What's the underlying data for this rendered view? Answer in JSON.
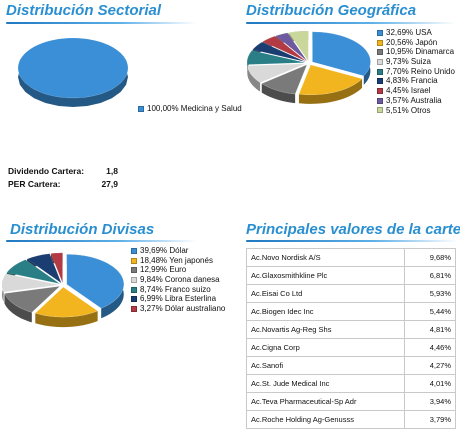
{
  "colors": {
    "title": "#2a8fd0",
    "palette": [
      "#3b8fd6",
      "#f2b51f",
      "#7a7a7a",
      "#d9d9d9",
      "#2a7f86",
      "#1a3e72",
      "#b23a43",
      "#6e5a9e",
      "#c9d79a"
    ]
  },
  "sectorial": {
    "title": "Distribución Sectorial",
    "chart_data": {
      "type": "pie",
      "title": "Distribución Sectorial",
      "labels": [
        "100,00% Medicina y Salud"
      ],
      "values": [
        100.0
      ],
      "legend_position": "right"
    }
  },
  "geografica": {
    "title": "Distribución Geográfica",
    "chart_data": {
      "type": "pie",
      "title": "Distribución Geográfica",
      "labels": [
        "32,69% USA",
        "20,56% Japón",
        "10,95% Dinamarca",
        "9,73% Suiza",
        "7,70% Reino Unido",
        "4,83% Francia",
        "4,45% Israel",
        "3,57% Australia",
        "5,51% Otros"
      ],
      "values": [
        32.69,
        20.56,
        10.95,
        9.73,
        7.7,
        4.83,
        4.45,
        3.57,
        5.51
      ],
      "legend_position": "right"
    }
  },
  "stats": {
    "dividendo_label": "Dividendo Cartera:",
    "dividendo_value": "1,8",
    "per_label": "PER Cartera:",
    "per_value": "27,9"
  },
  "divisas": {
    "title": "Distribución Divisas",
    "chart_data": {
      "type": "pie",
      "title": "Distribución Divisas",
      "labels": [
        "39,69% Dólar",
        "18,48% Yen japonés",
        "12,99% Euro",
        "9,84% Corona danesa",
        "8,74% Franco suizo",
        "6,99% Libra Esterlina",
        "3,27% Dólar australiano"
      ],
      "values": [
        39.69,
        18.48,
        12.99,
        9.84,
        8.74,
        6.99,
        3.27
      ],
      "legend_position": "right"
    }
  },
  "principales": {
    "title": "Principales valores de la cartera",
    "chart_data": {
      "type": "table",
      "title": "Principales valores de la cartera",
      "rows": [
        {
          "name": "Ac.Novo Nordisk A/S",
          "value": "9,68%"
        },
        {
          "name": "Ac.Glaxosmithkline Plc",
          "value": "6,81%"
        },
        {
          "name": "Ac.Eisai Co Ltd",
          "value": "5,93%"
        },
        {
          "name": "Ac.Biogen Idec Inc",
          "value": "5,44%"
        },
        {
          "name": "Ac.Novartis Ag-Reg Shs",
          "value": "4,81%"
        },
        {
          "name": "Ac.Cigna Corp",
          "value": "4,46%"
        },
        {
          "name": "Ac.Sanofi",
          "value": "4,27%"
        },
        {
          "name": "Ac.St. Jude Medical Inc",
          "value": "4,01%"
        },
        {
          "name": "Ac.Teva Pharmaceutical-Sp Adr",
          "value": "3,94%"
        },
        {
          "name": "Ac.Roche Holding Ag-Genusss",
          "value": "3,79%"
        }
      ]
    }
  }
}
